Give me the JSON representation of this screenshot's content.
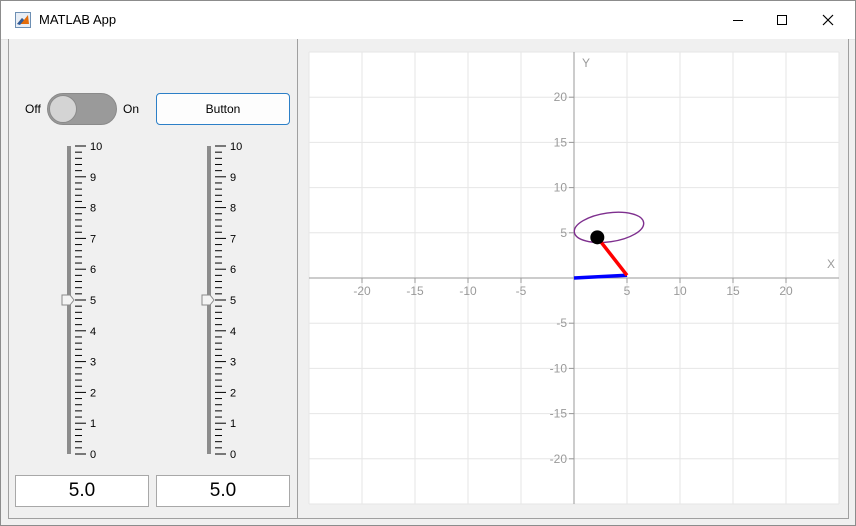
{
  "window": {
    "title": "MATLAB App"
  },
  "switch": {
    "off_label": "Off",
    "on_label": "On",
    "state": "Off"
  },
  "button": {
    "label": "Button"
  },
  "sliders": [
    {
      "value": 5.0,
      "min": 0,
      "max": 10,
      "field_text": "5.0",
      "ticks": [
        "0",
        "1",
        "2",
        "3",
        "4",
        "5",
        "6",
        "7",
        "8",
        "9",
        "10"
      ]
    },
    {
      "value": 5.0,
      "min": 0,
      "max": 10,
      "field_text": "5.0",
      "ticks": [
        "0",
        "1",
        "2",
        "3",
        "4",
        "5",
        "6",
        "7",
        "8",
        "9",
        "10"
      ]
    }
  ],
  "plot": {
    "x_axis_label": "X",
    "y_axis_label": "Y",
    "xlim": [
      -25,
      25
    ],
    "ylim": [
      -25,
      25
    ],
    "x_ticks": [
      -20,
      -15,
      -10,
      -5,
      5,
      10,
      15,
      20
    ],
    "y_ticks": [
      20,
      15,
      10,
      5,
      -5,
      -10,
      -15,
      -20
    ],
    "grid": true,
    "colors": {
      "link1": "#0000ff",
      "link2": "#ff0000",
      "trace": "#7e2f8e",
      "joint": "#000000",
      "axis": "#9a9a9a",
      "grid": "#e6e6e6"
    },
    "link1": {
      "from": [
        0,
        0
      ],
      "to": [
        5,
        0.3
      ]
    },
    "link2": {
      "from": [
        5,
        0.3
      ],
      "to": [
        2.2,
        4.5
      ]
    },
    "joint": [
      2.2,
      4.5
    ],
    "trace_center": [
      3.3,
      5.6
    ],
    "trace_radii": [
      6.6,
      1.6
    ]
  }
}
